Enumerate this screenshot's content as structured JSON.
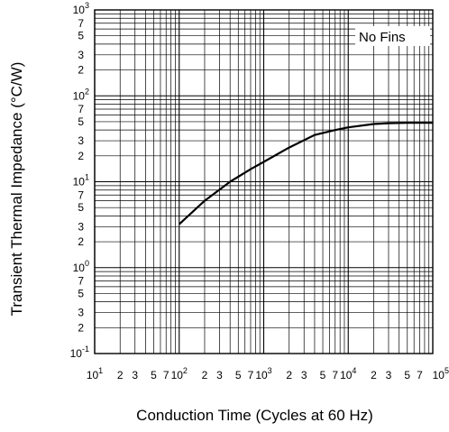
{
  "chart_data": {
    "type": "line",
    "title": "",
    "xlabel": "Conduction Time (Cycles at 60 Hz)",
    "ylabel": "Transient Thermal Impedance   (°C/W)",
    "xscale": "log",
    "yscale": "log",
    "xlim": [
      10,
      100000
    ],
    "ylim": [
      0.1,
      1000
    ],
    "grid": true,
    "legend": {
      "position": "top-right",
      "text": "No Fins"
    },
    "x_major_ticks": [
      {
        "value": 10,
        "base": "10",
        "exp": "1"
      },
      {
        "value": 100,
        "base": "10",
        "exp": "2"
      },
      {
        "value": 1000,
        "base": "10",
        "exp": "3"
      },
      {
        "value": 10000,
        "base": "10",
        "exp": "4"
      },
      {
        "value": 100000,
        "base": "10",
        "exp": "5"
      }
    ],
    "x_minor_labels": [
      "2",
      "3",
      "5",
      "7"
    ],
    "y_major_ticks": [
      {
        "value": 1000,
        "base": "10",
        "exp": "3"
      },
      {
        "value": 100,
        "base": "10",
        "exp": "2"
      },
      {
        "value": 10,
        "base": "10",
        "exp": "1"
      },
      {
        "value": 1,
        "base": "10",
        "exp": "0"
      },
      {
        "value": 0.1,
        "base": "10",
        "exp": "-1"
      }
    ],
    "y_minor_labels": [
      "2",
      "3",
      "5",
      "7"
    ],
    "series": [
      {
        "x": [
          100,
          200,
          400,
          700,
          1000,
          2000,
          4000,
          7000,
          10000,
          20000,
          30000,
          50000,
          100000
        ],
        "values": [
          3.2,
          6,
          10,
          14,
          17,
          25,
          35,
          40,
          43,
          47,
          48,
          48.5,
          48.5
        ]
      }
    ]
  }
}
